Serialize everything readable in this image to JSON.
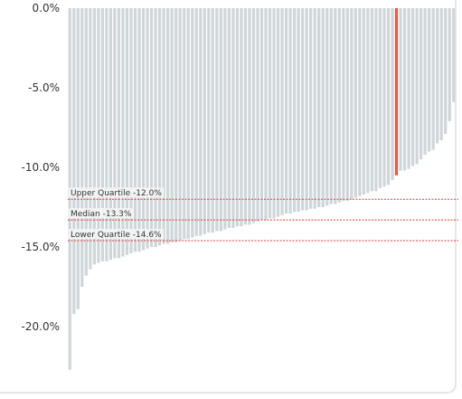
{
  "chart_data": {
    "type": "bar",
    "orientation": "vertical",
    "bar_direction": "downward",
    "values": [
      -22.7,
      -19.2,
      -18.9,
      -17.5,
      -16.8,
      -16.4,
      -16.1,
      -16.0,
      -15.9,
      -15.9,
      -15.8,
      -15.7,
      -15.7,
      -15.6,
      -15.5,
      -15.4,
      -15.3,
      -15.3,
      -15.2,
      -15.1,
      -15.0,
      -15.0,
      -14.9,
      -14.8,
      -14.8,
      -14.7,
      -14.7,
      -14.6,
      -14.5,
      -14.5,
      -14.4,
      -14.3,
      -14.3,
      -14.2,
      -14.1,
      -14.1,
      -14.0,
      -14.0,
      -13.9,
      -13.8,
      -13.8,
      -13.7,
      -13.7,
      -13.6,
      -13.6,
      -13.5,
      -13.4,
      -13.3,
      -13.3,
      -13.2,
      -13.2,
      -13.1,
      -13.0,
      -12.9,
      -12.9,
      -12.8,
      -12.8,
      -12.7,
      -12.7,
      -12.6,
      -12.6,
      -12.5,
      -12.5,
      -12.4,
      -12.3,
      -12.3,
      -12.2,
      -12.1,
      -12.1,
      -12.0,
      -11.9,
      -11.8,
      -11.7,
      -11.6,
      -11.5,
      -11.5,
      -11.3,
      -11.2,
      -11.1,
      -10.8,
      -10.5,
      -10.2,
      -10.2,
      -10.1,
      -9.9,
      -9.8,
      -9.5,
      -9.2,
      -9.0,
      -8.9,
      -8.5,
      -8.3,
      -7.9,
      -7.1,
      -5.9
    ],
    "highlight_index": 80,
    "bar_color": "#cfd6d9",
    "highlight_color": "#e05a4b",
    "yticks": [
      0,
      -5,
      -10,
      -15,
      -20
    ],
    "ytick_labels": [
      "0.0%",
      "-5.0%",
      "-10.0%",
      "-15.0%",
      "-20.0%"
    ],
    "ylim": [
      -23.2,
      0
    ],
    "reference_lines": [
      {
        "label": "Upper Quartile -12.0%",
        "value": -12.0
      },
      {
        "label": "Median -13.3%",
        "value": -13.3
      },
      {
        "label": "Lower Quartile -14.6%",
        "value": -14.6
      }
    ],
    "reference_color": "#e03c3c",
    "grid": false,
    "title": "",
    "xlabel": "",
    "ylabel": ""
  }
}
